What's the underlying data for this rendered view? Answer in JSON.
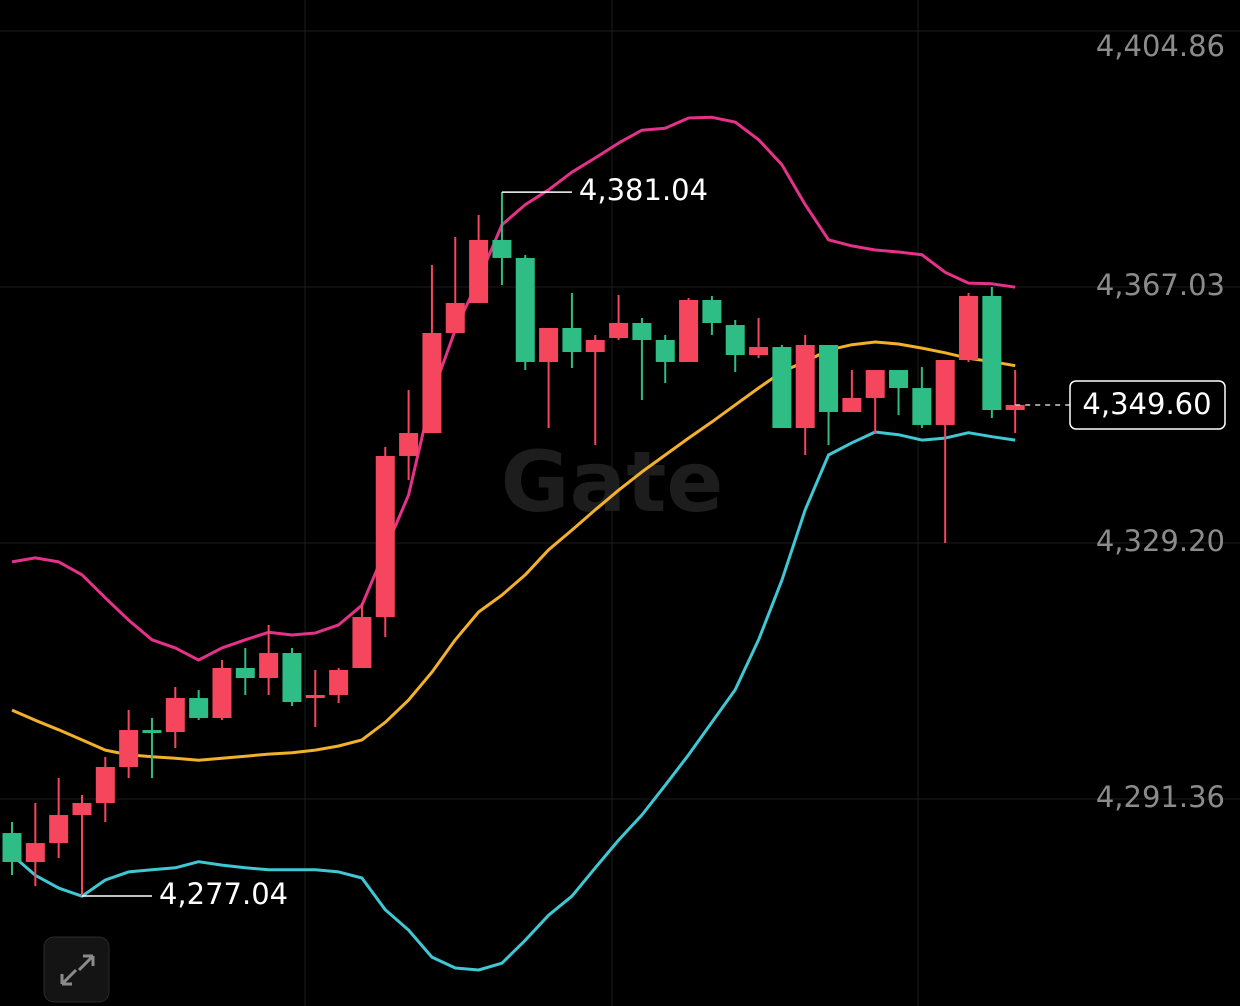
{
  "chart_data": {
    "type": "candlestick",
    "watermark": "Gate",
    "up_color": "#f6465d",
    "down_color": "#2ebd85",
    "ylim": [
      4260.78,
      4409.44
    ],
    "yticks": [
      {
        "value": 4404.86,
        "label": "4,404.86"
      },
      {
        "value": 4367.03,
        "label": "4,367.03"
      },
      {
        "value": 4329.2,
        "label": "4,329.20"
      },
      {
        "value": 4291.36,
        "label": "4,291.36"
      }
    ],
    "grid": true,
    "open": [
      4286.34,
      4282.06,
      4284.86,
      4289.0,
      4290.78,
      4296.1,
      4301.56,
      4301.27,
      4306.29,
      4303.34,
      4310.73,
      4309.25,
      4312.94,
      4306.29,
      4306.74,
      4310.73,
      4318.26,
      4342.06,
      4345.45,
      4360.23,
      4364.67,
      4373.98,
      4371.32,
      4355.95,
      4360.97,
      4357.42,
      4359.49,
      4361.71,
      4359.2,
      4355.95,
      4365.11,
      4361.41,
      4356.98,
      4358.16,
      4346.19,
      4358.46,
      4348.56,
      4350.63,
      4354.76,
      4352.1,
      4346.64,
      4356.24,
      4365.7,
      4348.85
    ],
    "high": [
      4287.97,
      4290.78,
      4294.47,
      4291.96,
      4297.57,
      4304.52,
      4303.34,
      4307.92,
      4307.47,
      4311.91,
      4313.68,
      4317.08,
      4313.68,
      4310.43,
      4310.73,
      4320.33,
      4343.39,
      4351.81,
      4370.28,
      4374.42,
      4377.67,
      4381.04,
      4371.76,
      4360.97,
      4366.14,
      4359.94,
      4365.85,
      4362.45,
      4359.94,
      4365.4,
      4365.7,
      4362.15,
      4362.45,
      4358.46,
      4359.94,
      4358.46,
      4354.76,
      4354.76,
      4354.76,
      4355.21,
      4356.24,
      4366.14,
      4367.03,
      4354.76
    ],
    "low": [
      4280.14,
      4278.5,
      4282.65,
      4277.04,
      4287.97,
      4294.47,
      4294.47,
      4298.9,
      4303.04,
      4303.04,
      4306.74,
      4306.74,
      4305.11,
      4302.01,
      4305.55,
      4310.73,
      4315.31,
      4338.51,
      4345.45,
      4360.23,
      4364.67,
      4367.33,
      4354.76,
      4346.19,
      4355.06,
      4343.68,
      4359.2,
      4350.33,
      4352.84,
      4355.95,
      4359.94,
      4354.47,
      4356.54,
      4346.19,
      4342.2,
      4343.68,
      4348.56,
      4345.45,
      4348.11,
      4346.19,
      4329.2,
      4355.95,
      4347.67,
      4345.45
    ],
    "close": [
      4282.06,
      4284.86,
      4289.0,
      4290.78,
      4296.1,
      4301.56,
      4301.12,
      4306.29,
      4303.34,
      4310.73,
      4309.25,
      4312.94,
      4305.7,
      4306.74,
      4310.43,
      4318.26,
      4342.06,
      4345.45,
      4360.23,
      4364.67,
      4373.98,
      4371.32,
      4355.95,
      4360.97,
      4357.42,
      4359.2,
      4361.71,
      4359.2,
      4355.95,
      4365.11,
      4361.71,
      4356.98,
      4358.16,
      4346.19,
      4358.46,
      4348.56,
      4350.63,
      4354.76,
      4352.1,
      4346.64,
      4356.24,
      4365.7,
      4348.85,
      4349.6
    ],
    "series": [
      {
        "color": "#e5318a",
        "values": [
          4326.4,
          4327.0,
          4326.4,
          4324.5,
          4321.1,
          4317.8,
          4314.9,
          4313.7,
          4311.9,
          4313.7,
          4314.9,
          4316.0,
          4315.6,
          4315.9,
          4317.1,
          4320.0,
          4328.2,
          4336.3,
          4351.1,
          4360.7,
          4368.1,
          4376.2,
          4379.2,
          4381.4,
          4384.0,
          4386.1,
          4388.3,
          4390.2,
          4390.5,
          4392.0,
          4392.1,
          4391.4,
          4388.8,
          4385.1,
          4379.2,
          4374.0,
          4373.1,
          4372.5,
          4372.2,
          4371.8,
          4369.2,
          4367.6,
          4367.5,
          4367.0
        ]
      },
      {
        "color": "#f2b02b",
        "values": [
          4304.5,
          4303.0,
          4301.6,
          4300.1,
          4298.6,
          4297.9,
          4297.6,
          4297.4,
          4297.1,
          4297.4,
          4297.7,
          4298.0,
          4298.2,
          4298.6,
          4299.2,
          4300.1,
          4302.7,
          4306.0,
          4310.1,
          4314.9,
          4319.0,
          4321.5,
          4324.5,
          4328.2,
          4331.1,
          4334.1,
          4337.0,
          4339.7,
          4342.2,
          4344.7,
          4347.1,
          4349.6,
          4352.1,
          4354.5,
          4356.0,
          4357.7,
          4358.5,
          4358.9,
          4358.6,
          4358.0,
          4357.3,
          4356.5,
          4356.0,
          4355.4
        ]
      },
      {
        "color": "#3fc8d4",
        "values": [
          4283.1,
          4280.1,
          4278.2,
          4277.0,
          4279.4,
          4280.6,
          4280.9,
          4281.2,
          4282.1,
          4281.6,
          4281.2,
          4280.9,
          4280.9,
          4280.9,
          4280.6,
          4279.7,
          4275.0,
          4272.0,
          4268.0,
          4266.4,
          4266.1,
          4267.1,
          4270.5,
          4274.2,
          4277.0,
          4281.2,
          4285.3,
          4289.0,
          4293.4,
          4297.9,
          4302.7,
          4307.5,
          4314.9,
          4323.7,
          4334.1,
          4342.2,
          4344.0,
          4345.6,
          4345.2,
          4344.4,
          4344.7,
          4345.5,
          4344.9,
          4344.4
        ]
      }
    ],
    "annotations": [
      {
        "kind": "high",
        "value": 4381.04,
        "label": "4,381.04"
      },
      {
        "kind": "low",
        "value": 4277.04,
        "label": "4,277.04"
      },
      {
        "kind": "last",
        "value": 4349.6,
        "label": "4,349.60"
      }
    ]
  }
}
